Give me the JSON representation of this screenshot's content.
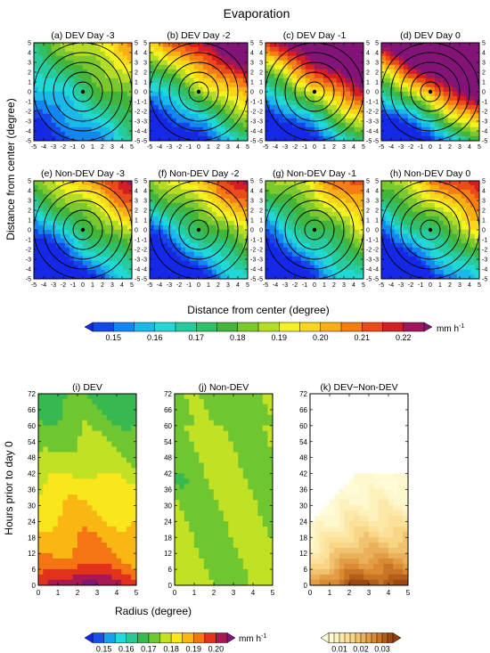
{
  "title": "Evaporation",
  "top_panels": [
    {
      "label": "(a) DEV Day -3",
      "level": 0.17,
      "gradient": [
        0.003,
        0.004
      ],
      "gradient_dir": "up-right"
    },
    {
      "label": "(b) DEV Day -2",
      "level": 0.182,
      "gradient": [
        0.005,
        0.008
      ],
      "gradient_dir": "up-right"
    },
    {
      "label": "(c) DEV Day -1",
      "level": 0.192,
      "gradient": [
        0.006,
        0.01
      ],
      "gradient_dir": "up-right"
    },
    {
      "label": "(d) DEV Day 0",
      "level": 0.203,
      "gradient": [
        0.007,
        0.012
      ],
      "gradient_dir": "up-right"
    },
    {
      "label": "(e) Non-DEV Day -3",
      "level": 0.172,
      "gradient": [
        0.004,
        0.006
      ],
      "gradient_dir": "up-right"
    },
    {
      "label": "(f) Non-DEV Day -2",
      "level": 0.172,
      "gradient": [
        0.004,
        0.006
      ],
      "gradient_dir": "up-right"
    },
    {
      "label": "(g) Non-DEV Day -1",
      "level": 0.173,
      "gradient": [
        0.0035,
        0.005
      ],
      "gradient_dir": "up-right"
    },
    {
      "label": "(h) Non-DEV Day 0",
      "level": 0.173,
      "gradient": [
        0.004,
        0.006
      ],
      "gradient_dir": "up-right"
    }
  ],
  "top_axes": {
    "xlabel": "Distance from center (degree)",
    "ylabel": "Distance from center (degree)",
    "ticks": [
      "-5",
      "-4",
      "-3",
      "-2",
      "-1",
      "0",
      "1",
      "2",
      "3",
      "4",
      "5"
    ],
    "range": [
      -5,
      5
    ],
    "range_rings_degree": [
      1,
      2,
      3,
      4,
      5
    ]
  },
  "top_colorbar": {
    "min": 0.145,
    "max": 0.225,
    "step": 0.005,
    "tick_labels": [
      "0.15",
      "0.16",
      "0.17",
      "0.18",
      "0.19",
      "0.20",
      "0.21",
      "0.22"
    ],
    "unit_main": "mm h",
    "unit_sup": "-1"
  },
  "bottom_panels": [
    {
      "label": "(i) DEV",
      "field": "dev"
    },
    {
      "label": "(j) Non-DEV",
      "field": "nondev"
    },
    {
      "label": "(k) DEV−Non-DEV",
      "field": "diff"
    }
  ],
  "bottom_axes": {
    "xlabel": "Radius (degree)",
    "ylabel": "Hours prior to day 0",
    "xticks": [
      "0",
      "1",
      "2",
      "3",
      "4",
      "5"
    ],
    "yticks": [
      "0",
      "6",
      "12",
      "18",
      "24",
      "30",
      "36",
      "42",
      "48",
      "54",
      "60",
      "66",
      "72"
    ],
    "x_range": [
      0,
      5
    ],
    "y_range": [
      0,
      72
    ]
  },
  "bottom_colorbar_left": {
    "min": 0.145,
    "max": 0.205,
    "step": 0.005,
    "tick_labels": [
      "0.15",
      "0.16",
      "0.17",
      "0.18",
      "0.19",
      "0.20"
    ],
    "unit_main": "mm h",
    "unit_sup": "-1"
  },
  "bottom_colorbar_right": {
    "min": 0.005,
    "max": 0.035,
    "step": 0.0025,
    "tick_labels": [
      "0.01",
      "0.02",
      "0.03"
    ]
  },
  "chart_data": [
    {
      "type": "heatmap",
      "title": "Evaporation",
      "description": "Composite evaporation maps around storm center, DEV and Non-DEV cases, days -3 to 0",
      "panels": [
        "(a) DEV Day -3",
        "(b) DEV Day -2",
        "(c) DEV Day -1",
        "(d) DEV Day 0",
        "(e) Non-DEV Day -3",
        "(f) Non-DEV Day -2",
        "(g) Non-DEV Day -1",
        "(h) Non-DEV Day 0"
      ],
      "xlabel": "Distance from center (degree)",
      "ylabel": "Distance from center (degree)",
      "xlim": [
        -5,
        5
      ],
      "ylim": [
        -5,
        5
      ],
      "approx_center_value": [
        0.17,
        0.182,
        0.192,
        0.203,
        0.172,
        0.172,
        0.173,
        0.173
      ],
      "colorbar_range": [
        0.145,
        0.225
      ]
    },
    {
      "type": "heatmap",
      "panels": [
        "(i) DEV",
        "(j) Non-DEV",
        "(k) DEV−Non-DEV"
      ],
      "xlabel": "Radius (degree)",
      "ylabel": "Hours prior to day 0",
      "xlim": [
        0,
        5
      ],
      "ylim": [
        0,
        72
      ],
      "dev_profile_hour": [
        0,
        6,
        12,
        18,
        24,
        30,
        36,
        42,
        48,
        54,
        60,
        66,
        72
      ],
      "dev_profile_value": [
        0.203,
        0.196,
        0.192,
        0.19,
        0.188,
        0.186,
        0.184,
        0.181,
        0.178,
        0.176,
        0.174,
        0.172,
        0.17
      ],
      "nondev_mean": 0.175,
      "diff_range": [
        0.005,
        0.035
      ]
    }
  ]
}
